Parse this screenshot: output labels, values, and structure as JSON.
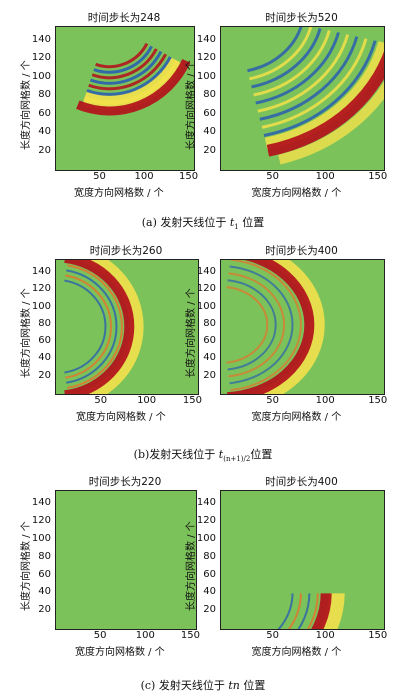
{
  "captions": {
    "a": {
      "prefix": "(a) 发射天线位于 ",
      "sym": "t",
      "sub": "1",
      "suffix": " 位置"
    },
    "b": {
      "prefix": "(b)发射天线位于 ",
      "sym": "t",
      "sub": "(n+1)/2",
      "suffix": "位置"
    },
    "c": {
      "prefix": "(c) 发射天线位于 ",
      "sym": "tn",
      "sub": "",
      "suffix": " 位置"
    }
  },
  "axes": {
    "xlabel": "宽度方向网格数 / 个",
    "ylabel": "长度方向网格数 / 个",
    "xticks": [
      "50",
      "100",
      "150"
    ],
    "yticks": [
      "20",
      "40",
      "60",
      "80",
      "100",
      "120",
      "140"
    ]
  },
  "panels": [
    {
      "id": "a-left",
      "title": "时间步长为248"
    },
    {
      "id": "a-right",
      "title": "时间步长为520"
    },
    {
      "id": "b-left",
      "title": "时间步长为260"
    },
    {
      "id": "b-right",
      "title": "时间步长为400"
    },
    {
      "id": "c-left",
      "title": "时间步长为220"
    },
    {
      "id": "c-right",
      "title": "时间步长为400"
    }
  ],
  "colors": {
    "background": "#7cc25a",
    "wave_red": "#b3161e",
    "wave_yellow": "#f2e14a",
    "wave_blue": "#2a5fb0"
  }
}
